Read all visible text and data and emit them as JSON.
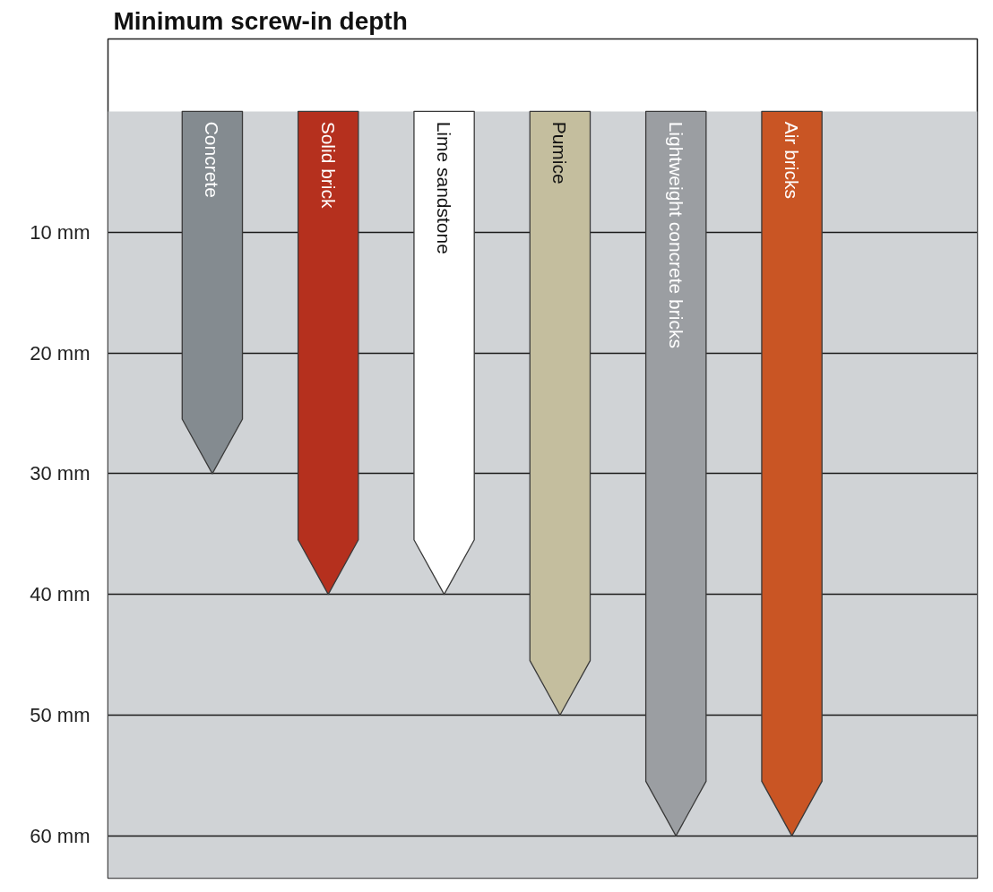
{
  "chart_data": {
    "type": "bar",
    "title": "Minimum screw-in depth",
    "categories": [
      "Concrete",
      "Solid brick",
      "Lime sandstone",
      "Pumice",
      "Lightweight concrete bricks",
      "Air bricks"
    ],
    "values": [
      30,
      40,
      40,
      50,
      60,
      60
    ],
    "colors": [
      "#848b90",
      "#b5301e",
      "#ffffff",
      "#c4be9e",
      "#9b9ea2",
      "#c95524"
    ],
    "ylim": [
      63.5,
      -6
    ],
    "yticks": [
      {
        "value": 10,
        "label": "10 mm"
      },
      {
        "value": 20,
        "label": "20 mm"
      },
      {
        "value": 30,
        "label": "30 mm"
      },
      {
        "value": 40,
        "label": "40 mm"
      },
      {
        "value": 50,
        "label": "50 mm"
      },
      {
        "value": 60,
        "label": "60 mm"
      }
    ],
    "grid": "y",
    "bands": [
      {
        "axis": "y",
        "from": 0,
        "to": 63.5,
        "color": "#d0d3d6"
      }
    ]
  }
}
